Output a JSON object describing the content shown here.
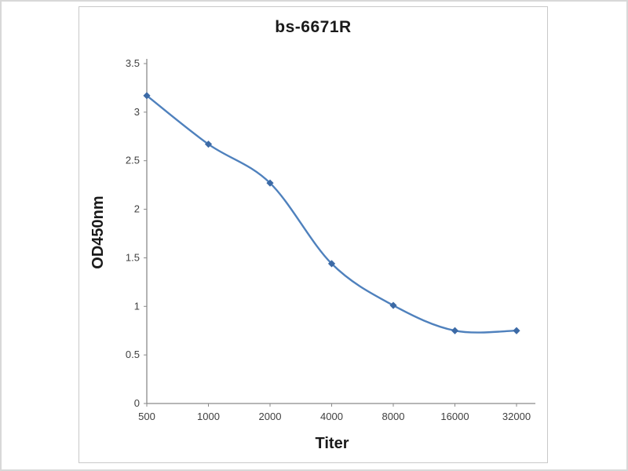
{
  "chart_data": {
    "type": "line",
    "title": "bs-6671R",
    "xlabel": "Titer",
    "ylabel": "OD450nm",
    "categories": [
      "500",
      "1000",
      "2000",
      "4000",
      "8000",
      "16000",
      "32000"
    ],
    "values": [
      3.17,
      2.67,
      2.27,
      1.44,
      1.01,
      0.75,
      0.75
    ],
    "ylim": [
      0,
      3.5
    ],
    "yticks": [
      0,
      0.5,
      1,
      1.5,
      2,
      2.5,
      3,
      3.5
    ],
    "grid": false,
    "legend": false,
    "line_color": "#4f81bd",
    "marker": "diamond",
    "marker_color": "#3c6aa6",
    "axis_color": "#8a8a8a",
    "text_color": "#404040"
  }
}
